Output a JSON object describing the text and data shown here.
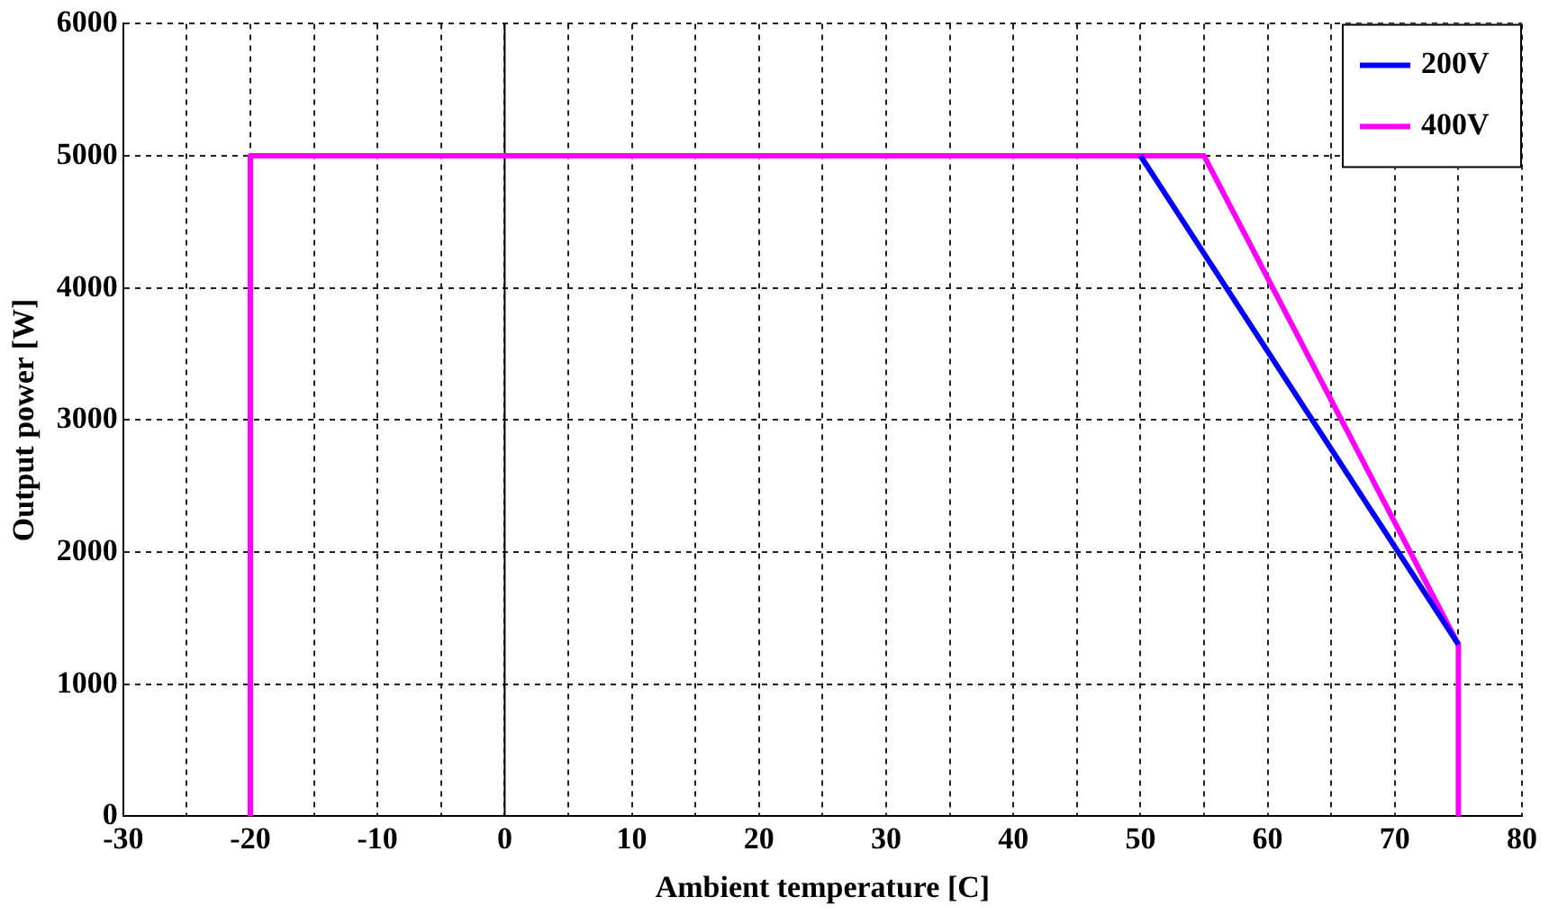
{
  "chart_data": {
    "type": "line",
    "xlabel": "Ambient temperature [C]",
    "ylabel": "Output power [W]",
    "series": [
      {
        "name": "200V",
        "color": "#0000ff",
        "x": [
          50,
          75
        ],
        "values": [
          5000,
          1300
        ]
      },
      {
        "name": "400V",
        "color": "#ff00ff",
        "x": [
          -20,
          -20,
          55,
          75,
          75
        ],
        "values": [
          0,
          5000,
          5000,
          1300,
          0
        ]
      }
    ],
    "xlim": [
      -30,
      80
    ],
    "xticks": [
      -30,
      {
        "value": -25,
        "label": null
      },
      -20,
      {
        "value": -15,
        "label": null
      },
      -10,
      {
        "value": -5,
        "label": null
      },
      0,
      {
        "value": 5,
        "label": null
      },
      10,
      {
        "value": 15,
        "label": null
      },
      20,
      {
        "value": 25,
        "label": null
      },
      30,
      {
        "value": 35,
        "label": null
      },
      40,
      {
        "value": 45,
        "label": null
      },
      50,
      {
        "value": 55,
        "label": null
      },
      60,
      {
        "value": 65,
        "label": null
      },
      70,
      {
        "value": 75,
        "label": null
      },
      80
    ],
    "ylim": [
      0,
      6000
    ],
    "yticks": [
      0,
      1000,
      2000,
      3000,
      4000,
      5000,
      6000
    ],
    "ref_lines": [
      {
        "axis": "x",
        "value": 0,
        "color": "#000000",
        "line_style": "solid"
      }
    ],
    "grid": true,
    "legend": "top right",
    "marker": "none",
    "line_style": "solid"
  }
}
